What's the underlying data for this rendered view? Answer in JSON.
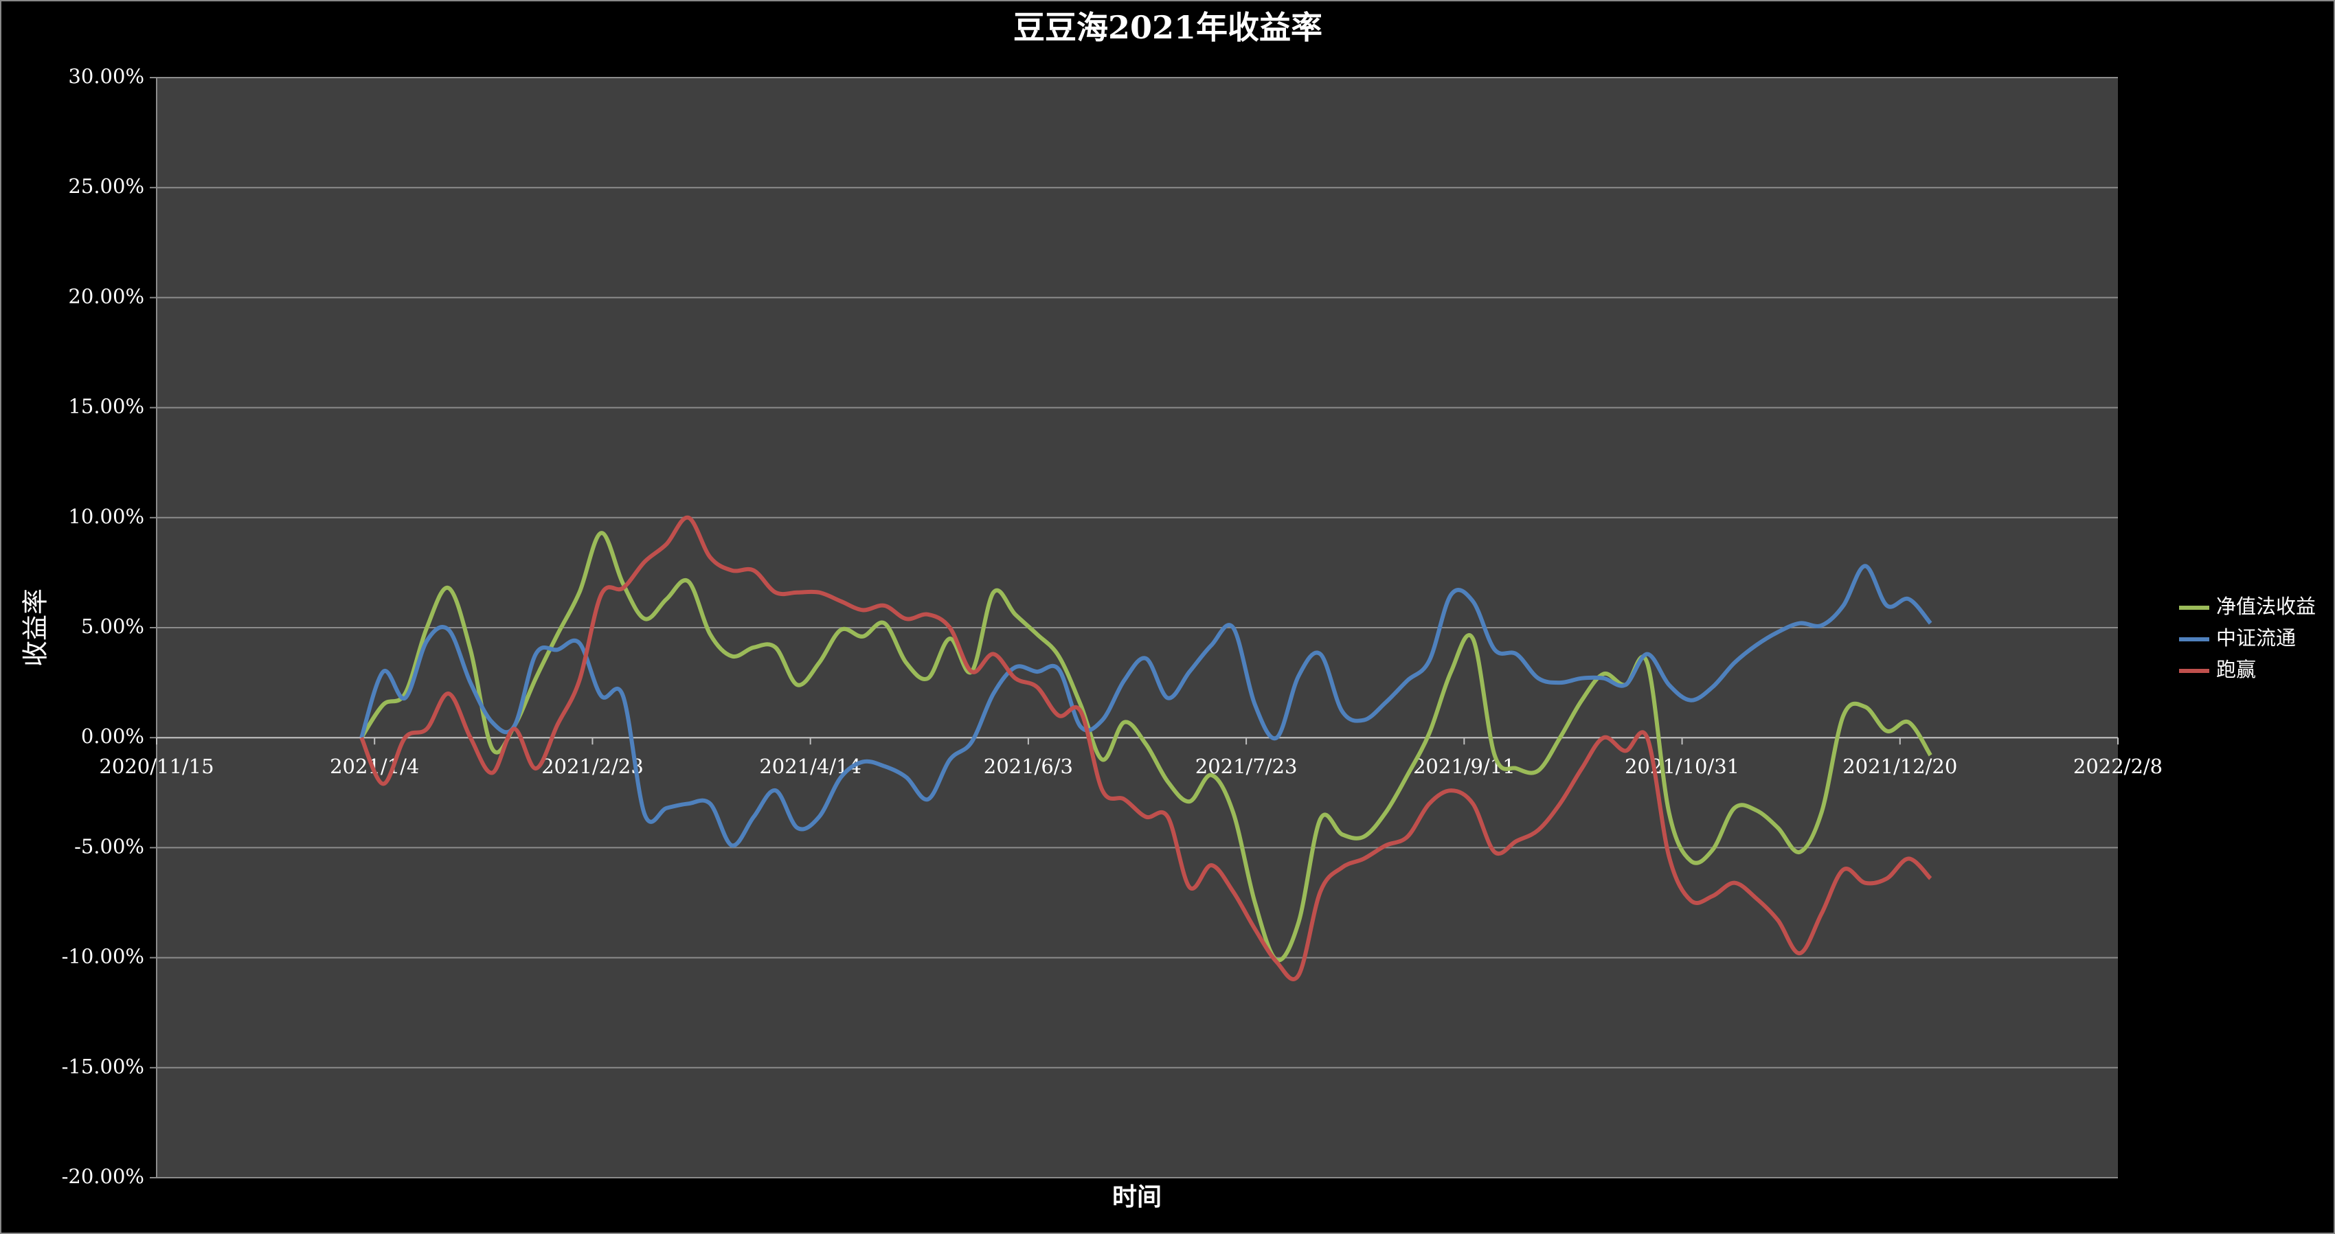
{
  "chart_data": {
    "type": "line",
    "title": "豆豆海2021年收益率",
    "x_label": "时间",
    "y_label": "收益率",
    "x": [
      "2021/1/1",
      "2021/1/6",
      "2021/1/11",
      "2021/1/16",
      "2021/1/21",
      "2021/1/26",
      "2021/1/31",
      "2021/2/5",
      "2021/2/10",
      "2021/2/15",
      "2021/2/20",
      "2021/2/25",
      "2021/3/2",
      "2021/3/7",
      "2021/3/12",
      "2021/3/17",
      "2021/3/22",
      "2021/3/27",
      "2021/4/1",
      "2021/4/6",
      "2021/4/11",
      "2021/4/16",
      "2021/4/21",
      "2021/4/26",
      "2021/5/1",
      "2021/5/6",
      "2021/5/11",
      "2021/5/16",
      "2021/5/21",
      "2021/5/26",
      "2021/5/31",
      "2021/6/5",
      "2021/6/10",
      "2021/6/15",
      "2021/6/20",
      "2021/6/25",
      "2021/6/30",
      "2021/7/5",
      "2021/7/10",
      "2021/7/15",
      "2021/7/20",
      "2021/7/25",
      "2021/7/30",
      "2021/8/4",
      "2021/8/9",
      "2021/8/14",
      "2021/8/19",
      "2021/8/24",
      "2021/8/29",
      "2021/9/3",
      "2021/9/8",
      "2021/9/13",
      "2021/9/18",
      "2021/9/23",
      "2021/9/28",
      "2021/10/3",
      "2021/10/8",
      "2021/10/13",
      "2021/10/18",
      "2021/10/23",
      "2021/10/28",
      "2021/11/2",
      "2021/11/7",
      "2021/11/12",
      "2021/11/17",
      "2021/11/22",
      "2021/11/27",
      "2021/12/2",
      "2021/12/7",
      "2021/12/12",
      "2021/12/17",
      "2021/12/22",
      "2021/12/27"
    ],
    "series": [
      {
        "name": "净值法收益",
        "color": "#9bbb59",
        "values": [
          0,
          1.5,
          2.0,
          5.0,
          6.8,
          4.0,
          -0.5,
          0.5,
          2.7,
          4.7,
          6.6,
          9.3,
          7.0,
          5.4,
          6.3,
          7.1,
          4.7,
          3.7,
          4.1,
          4.1,
          2.4,
          3.4,
          4.9,
          4.6,
          5.2,
          3.4,
          2.7,
          4.5,
          3.0,
          6.6,
          5.6,
          4.7,
          3.7,
          1.5,
          -1.0,
          0.7,
          -0.3,
          -2.0,
          -2.9,
          -1.7,
          -3.4,
          -7.5,
          -10.1,
          -8.4,
          -3.7,
          -4.4,
          -4.5,
          -3.4,
          -1.7,
          0.2,
          3.0,
          4.5,
          -0.8,
          -1.4,
          -1.5,
          0,
          1.7,
          2.9,
          2.4,
          3.4,
          -3.4,
          -5.6,
          -5.1,
          -3.2,
          -3.3,
          -4.1,
          -5.2,
          -3.4,
          1.0,
          1.4,
          0.3,
          0.7,
          -0.8
        ]
      },
      {
        "name": "中证流通",
        "color": "#4f81bd",
        "values": [
          0,
          3.0,
          1.8,
          4.4,
          4.9,
          2.5,
          0.7,
          0.5,
          3.8,
          4.0,
          4.3,
          1.9,
          1.9,
          -3.5,
          -3.2,
          -3.0,
          -3.0,
          -4.9,
          -3.6,
          -2.4,
          -4.1,
          -3.6,
          -1.8,
          -1.1,
          -1.3,
          -1.8,
          -2.8,
          -1.0,
          -0.2,
          2.0,
          3.2,
          3.0,
          3.1,
          0.5,
          0.8,
          2.6,
          3.6,
          1.8,
          3.0,
          4.2,
          5.0,
          1.5,
          0.0,
          2.8,
          3.8,
          1.2,
          0.8,
          1.6,
          2.6,
          3.5,
          6.5,
          6.2,
          4.0,
          3.8,
          2.7,
          2.5,
          2.7,
          2.7,
          2.4,
          3.8,
          2.4,
          1.7,
          2.3,
          3.4,
          4.2,
          4.8,
          5.2,
          5.1,
          6.0,
          7.8,
          6.0,
          6.3,
          5.2
        ]
      },
      {
        "name": "跑赢",
        "color": "#c0504d",
        "values": [
          0,
          -2.1,
          0.0,
          0.4,
          2.0,
          0.0,
          -1.6,
          0.4,
          -1.4,
          0.6,
          2.6,
          6.5,
          6.8,
          8.0,
          8.8,
          10.0,
          8.2,
          7.6,
          7.6,
          6.6,
          6.6,
          6.6,
          6.2,
          5.8,
          6.0,
          5.4,
          5.6,
          5.0,
          3.0,
          3.8,
          2.7,
          2.3,
          1.0,
          1.2,
          -2.4,
          -2.8,
          -3.6,
          -3.6,
          -6.8,
          -5.8,
          -7.0,
          -8.7,
          -10.2,
          -10.8,
          -7.0,
          -5.9,
          -5.5,
          -4.9,
          -4.5,
          -3.0,
          -2.4,
          -3.0,
          -5.2,
          -4.7,
          -4.2,
          -3.0,
          -1.4,
          0.0,
          -0.6,
          0.0,
          -5.4,
          -7.4,
          -7.2,
          -6.6,
          -7.3,
          -8.3,
          -9.8,
          -8.0,
          -6.0,
          -6.6,
          -6.4,
          -5.5,
          -6.4
        ]
      }
    ],
    "xlim": [
      "2020/11/15",
      "2022/2/8"
    ],
    "xticks": [
      "2020/11/15",
      "2021/1/4",
      "2021/2/23",
      "2021/4/14",
      "2021/6/3",
      "2021/7/23",
      "2021/9/11",
      "2021/10/31",
      "2021/12/20",
      "2022/2/8"
    ],
    "ylim": [
      -20,
      30
    ],
    "yticks": [
      {
        "value": -20,
        "label": "-20.00%"
      },
      {
        "value": -15,
        "label": "-15.00%"
      },
      {
        "value": -10,
        "label": "-10.00%"
      },
      {
        "value": -5,
        "label": "-5.00%"
      },
      {
        "value": 0,
        "label": "0.00%"
      },
      {
        "value": 5,
        "label": "5.00%"
      },
      {
        "value": 10,
        "label": "10.00%"
      },
      {
        "value": 15,
        "label": "15.00%"
      },
      {
        "value": 20,
        "label": "20.00%"
      },
      {
        "value": 25,
        "label": "25.00%"
      },
      {
        "value": 30,
        "label": "30.00%"
      }
    ],
    "grid": true,
    "legend": "right"
  }
}
